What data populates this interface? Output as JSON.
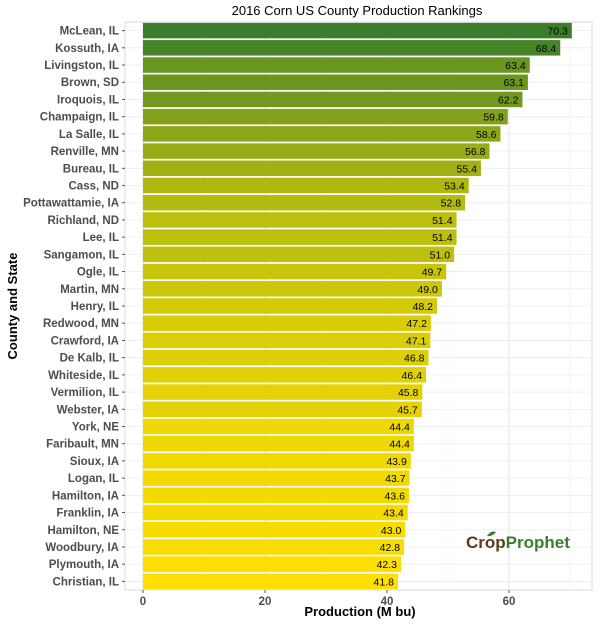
{
  "chart_data": {
    "type": "bar",
    "orientation": "horizontal",
    "title": "2016 Corn US County Production Rankings",
    "xlabel": "Production (M bu)",
    "ylabel": "County and State",
    "xlim": [
      0,
      75
    ],
    "xticks": [
      0,
      20,
      40,
      60
    ],
    "grid": true,
    "color_start": "#3a7d2a",
    "color_end": "#ffe000",
    "categories": [
      "McLean, IL",
      "Kossuth, IA",
      "Livingston, IL",
      "Brown, SD",
      "Iroquois, IL",
      "Champaign, IL",
      "La Salle, IL",
      "Renville, MN",
      "Bureau, IL",
      "Cass, ND",
      "Pottawattamie, IA",
      "Richland, ND",
      "Lee, IL",
      "Sangamon, IL",
      "Ogle, IL",
      "Martin, MN",
      "Henry, IL",
      "Redwood, MN",
      "Crawford, IA",
      "De Kalb, IL",
      "Whiteside, IL",
      "Vermilion, IL",
      "Webster, IA",
      "York, NE",
      "Faribault, MN",
      "Sioux, IA",
      "Logan, IL",
      "Hamilton, IA",
      "Franklin, IA",
      "Hamilton, NE",
      "Woodbury, IA",
      "Plymouth, IA",
      "Christian, IL"
    ],
    "values": [
      70.3,
      68.4,
      63.4,
      63.1,
      62.2,
      59.8,
      58.6,
      56.8,
      55.4,
      53.4,
      52.8,
      51.4,
      51.4,
      51.0,
      49.7,
      49.0,
      48.2,
      47.2,
      47.1,
      46.8,
      46.4,
      45.8,
      45.7,
      44.4,
      44.4,
      43.9,
      43.7,
      43.6,
      43.4,
      43.0,
      42.8,
      42.3,
      41.8
    ],
    "value_labels": [
      "70.3",
      "68.4",
      "63.4",
      "63.1",
      "62.2",
      "59.8",
      "58.6",
      "56.8",
      "55.4",
      "53.4",
      "52.8",
      "51.4",
      "51.4",
      "51.0",
      "49.7",
      "49.0",
      "48.2",
      "47.2",
      "47.1",
      "46.8",
      "46.4",
      "45.8",
      "45.7",
      "44.4",
      "44.4",
      "43.9",
      "43.7",
      "43.6",
      "43.4",
      "43.0",
      "42.8",
      "42.3",
      "41.8"
    ]
  },
  "logo": {
    "crop": "Crop",
    "prophet": "Prophet"
  }
}
